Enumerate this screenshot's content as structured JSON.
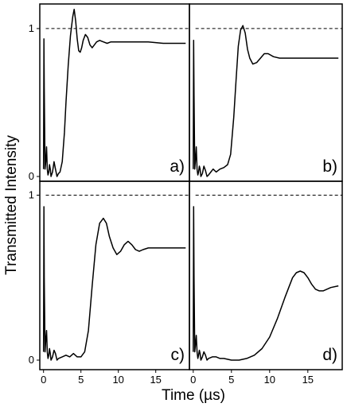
{
  "figure": {
    "ylabel": "Transmitted Intensity",
    "xlabel": "Time (µs)"
  },
  "chart_data": [
    {
      "type": "line",
      "panel_label": "a)",
      "xlim": [
        -0.5,
        19.5
      ],
      "ylim": [
        0,
        1.15
      ],
      "xticks": [
        0,
        5,
        10,
        15
      ],
      "yticks": [
        0,
        1
      ],
      "reference_level": 1,
      "x": [
        0,
        0.05,
        0.1,
        0.2,
        0.3,
        0.4,
        0.5,
        0.6,
        0.7,
        0.8,
        0.9,
        1.0,
        1.2,
        1.4,
        1.6,
        1.8,
        2.0,
        2.2,
        2.5,
        2.8,
        3.0,
        3.3,
        3.6,
        3.9,
        4.1,
        4.3,
        4.5,
        4.7,
        4.9,
        5.1,
        5.3,
        5.6,
        5.9,
        6.2,
        6.5,
        6.8,
        7.1,
        7.5,
        8.0,
        8.5,
        9.0,
        10,
        12,
        14,
        16,
        19
      ],
      "values": [
        0.05,
        0.93,
        0.6,
        0.05,
        0.1,
        0.2,
        0.05,
        0.01,
        0.03,
        0.08,
        0.05,
        0.0,
        0.03,
        0.1,
        0.05,
        0.0,
        0.02,
        0.03,
        0.1,
        0.3,
        0.5,
        0.75,
        0.95,
        1.08,
        1.13,
        1.05,
        0.93,
        0.85,
        0.84,
        0.87,
        0.92,
        0.96,
        0.94,
        0.89,
        0.87,
        0.89,
        0.91,
        0.92,
        0.91,
        0.9,
        0.91,
        0.91,
        0.91,
        0.91,
        0.9,
        0.9
      ]
    },
    {
      "type": "line",
      "panel_label": "b)",
      "xlim": [
        -0.5,
        19.5
      ],
      "ylim": [
        0,
        1.15
      ],
      "xticks": [
        0,
        5,
        10,
        15
      ],
      "yticks": [],
      "reference_level": 1,
      "x": [
        0,
        0.05,
        0.1,
        0.2,
        0.3,
        0.4,
        0.5,
        0.6,
        0.7,
        0.8,
        0.9,
        1.0,
        1.2,
        1.4,
        1.6,
        1.8,
        2.0,
        2.3,
        2.6,
        3.0,
        3.5,
        4.0,
        4.5,
        4.9,
        5.3,
        5.6,
        5.9,
        6.2,
        6.5,
        6.8,
        7.1,
        7.4,
        7.8,
        8.3,
        8.8,
        9.3,
        9.8,
        10.5,
        11.3,
        12,
        13,
        15,
        19
      ],
      "values": [
        0.05,
        0.92,
        0.55,
        0.05,
        0.12,
        0.2,
        0.05,
        0.01,
        0.03,
        0.07,
        0.05,
        0.0,
        0.02,
        0.07,
        0.04,
        0.0,
        0.01,
        0.03,
        0.05,
        0.03,
        0.05,
        0.06,
        0.08,
        0.15,
        0.4,
        0.65,
        0.88,
        0.99,
        1.02,
        0.97,
        0.86,
        0.8,
        0.76,
        0.77,
        0.8,
        0.83,
        0.83,
        0.81,
        0.8,
        0.8,
        0.8,
        0.8,
        0.8
      ]
    },
    {
      "type": "line",
      "panel_label": "c)",
      "xlim": [
        -0.5,
        19.5
      ],
      "ylim": [
        0,
        1.07
      ],
      "xticks": [
        0,
        5,
        10,
        15
      ],
      "yticks": [
        0,
        1
      ],
      "reference_level": 1,
      "x": [
        0,
        0.05,
        0.1,
        0.2,
        0.3,
        0.4,
        0.5,
        0.6,
        0.7,
        0.8,
        0.9,
        1.0,
        1.2,
        1.4,
        1.6,
        1.8,
        2.0,
        2.5,
        3.0,
        3.5,
        4.0,
        4.5,
        5.0,
        5.5,
        6.0,
        6.5,
        7.0,
        7.5,
        8.0,
        8.4,
        8.8,
        9.3,
        9.8,
        10.3,
        10.8,
        11.3,
        11.8,
        12.3,
        12.8,
        13.3,
        14,
        15,
        16,
        17,
        19
      ],
      "values": [
        0.05,
        0.93,
        0.5,
        0.05,
        0.12,
        0.18,
        0.05,
        0.01,
        0.03,
        0.07,
        0.04,
        0.0,
        0.02,
        0.06,
        0.04,
        0.0,
        0.01,
        0.02,
        0.03,
        0.02,
        0.04,
        0.02,
        0.02,
        0.05,
        0.18,
        0.45,
        0.7,
        0.83,
        0.86,
        0.83,
        0.75,
        0.68,
        0.64,
        0.66,
        0.7,
        0.72,
        0.7,
        0.67,
        0.66,
        0.67,
        0.68,
        0.68,
        0.68,
        0.68,
        0.68
      ]
    },
    {
      "type": "line",
      "panel_label": "d)",
      "xlim": [
        -0.5,
        19.5
      ],
      "ylim": [
        0,
        1.07
      ],
      "xticks": [
        0,
        5,
        10,
        15
      ],
      "yticks": [],
      "reference_level": 1,
      "x": [
        0,
        0.05,
        0.1,
        0.2,
        0.3,
        0.4,
        0.5,
        0.6,
        0.7,
        0.8,
        0.9,
        1.0,
        1.2,
        1.4,
        1.6,
        1.8,
        2.0,
        2.5,
        3.0,
        3.5,
        4.0,
        5.0,
        6.0,
        7.0,
        8.0,
        9.0,
        10.0,
        11.0,
        12.0,
        12.5,
        13.0,
        13.5,
        14.0,
        14.5,
        15.0,
        15.5,
        16.0,
        16.5,
        17.0,
        17.5,
        18.0,
        19.0
      ],
      "values": [
        0.05,
        0.93,
        0.5,
        0.05,
        0.1,
        0.15,
        0.05,
        0.01,
        0.03,
        0.06,
        0.04,
        0.0,
        0.02,
        0.05,
        0.03,
        0.0,
        0.01,
        0.02,
        0.02,
        0.01,
        0.01,
        0.0,
        0.0,
        0.01,
        0.03,
        0.07,
        0.14,
        0.25,
        0.38,
        0.44,
        0.5,
        0.53,
        0.54,
        0.53,
        0.5,
        0.46,
        0.43,
        0.42,
        0.42,
        0.43,
        0.44,
        0.45
      ]
    }
  ]
}
